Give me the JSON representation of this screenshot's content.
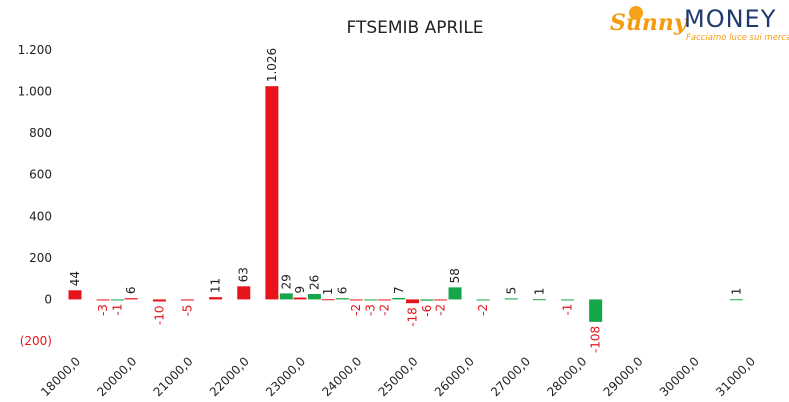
{
  "logo": {
    "brand": "Sunny",
    "name": "MONEY",
    "tagline": "Facciamo luce sui mercati"
  },
  "chart_data": {
    "type": "bar",
    "title": "FTSEMIB APRILE",
    "categories": [
      "18000,0",
      null,
      "20000,0",
      null,
      "21000,0",
      null,
      "22000,0",
      null,
      "23000,0",
      null,
      "24000,0",
      null,
      "25000,0",
      null,
      "26000,0",
      null,
      "27000,0",
      null,
      "28000,0",
      null,
      "29000,0",
      null,
      "30000,0",
      null,
      "31000,0"
    ],
    "series": [
      {
        "color": "#e8141b",
        "values": [
          44,
          -3,
          6,
          -10,
          -5,
          11,
          63,
          1026,
          9,
          1,
          -2,
          -2,
          -18,
          -2,
          null,
          null,
          null,
          null,
          null,
          null,
          null,
          null,
          null,
          null,
          null
        ],
        "value_labels": [
          null,
          null,
          null,
          null,
          null,
          null,
          null,
          "1.026",
          null,
          null,
          null,
          null,
          null,
          null,
          null,
          null,
          null,
          null,
          null,
          null,
          null,
          null,
          null,
          null,
          null
        ]
      },
      {
        "color": "#16a64a",
        "values": [
          null,
          -1,
          null,
          null,
          null,
          null,
          null,
          29,
          26,
          6,
          -3,
          7,
          -6,
          58,
          -2,
          5,
          1,
          -1,
          -108,
          null,
          null,
          null,
          null,
          1,
          null
        ]
      }
    ],
    "negative_color": "#e8141b",
    "ylim": [
      -200,
      1200
    ],
    "yticks": [
      {
        "value": -200,
        "label": "(200)"
      },
      0,
      200,
      400,
      600,
      800,
      {
        "value": 1000,
        "label": "1.000"
      },
      {
        "value": 1200,
        "label": "1.200"
      }
    ]
  }
}
